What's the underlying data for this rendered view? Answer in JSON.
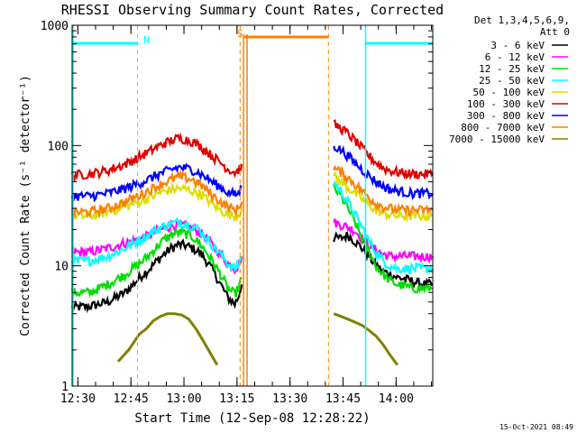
{
  "chart_data": {
    "type": "line",
    "title": "RHESSI Observing Summary Count Rates, Corrected",
    "xlabel": "Start Time (12-Sep-08 12:28:22)",
    "ylabel": "Corrected Count Rate (s⁻¹ detector⁻¹)",
    "yscale": "log",
    "ylim": [
      1,
      1000
    ],
    "xlim_minutes_after_start": [
      0,
      102
    ],
    "xticks": [
      "12:30",
      "12:45",
      "13:00",
      "13:15",
      "13:30",
      "13:45",
      "14:00"
    ],
    "yticks": [
      "1",
      "10",
      "100",
      "1000"
    ],
    "timestamp": "15-Oct-2021 08:49",
    "legend": {
      "header": [
        "Det 1,3,4,5,6,9,",
        "Att 0"
      ],
      "placement": "right",
      "items": [
        {
          "label": "3 - 6 keV",
          "color": "#000000"
        },
        {
          "label": "6 - 12 keV",
          "color": "#ff00ff"
        },
        {
          "label": "12 - 25 keV",
          "color": "#00dd00"
        },
        {
          "label": "25 - 50 keV",
          "color": "#00ffff"
        },
        {
          "label": "50 - 100 keV",
          "color": "#dddd00"
        },
        {
          "label": "100 - 300 keV",
          "color": "#e00000"
        },
        {
          "label": "300 - 800 keV",
          "color": "#0000ff"
        },
        {
          "label": "800 - 7000 keV",
          "color": "#ff8000"
        },
        {
          "label": "7000 - 15000 keV",
          "color": "#808000"
        }
      ]
    },
    "flags": [
      {
        "label": "N",
        "color": "#00ffff",
        "segments": [
          [
            0,
            18.5
          ],
          [
            83,
            102
          ]
        ],
        "markers_min": [
          18.5,
          83,
          102
        ]
      },
      {
        "label": "S",
        "color": "#ff8000",
        "segments": [
          [
            48.5,
            72.5
          ]
        ],
        "markers_min": [
          47.5,
          72.5
        ]
      }
    ],
    "x_minutes": [
      0,
      5,
      10,
      15,
      20,
      22,
      24,
      26,
      28,
      30,
      32,
      34,
      36,
      38,
      40,
      42,
      44,
      46,
      47,
      48,
      74,
      76,
      78,
      80,
      82,
      84,
      86,
      88,
      90,
      92,
      94,
      96,
      98,
      100,
      102
    ],
    "series": [
      {
        "name": "3 - 6 keV",
        "values": [
          4.5,
          4.6,
          5,
          6,
          8.5,
          9.5,
          11,
          12.5,
          14,
          15,
          14.8,
          14,
          13,
          11,
          9,
          7,
          5.5,
          4.8,
          5.5,
          7,
          17,
          17,
          18,
          16,
          14,
          12,
          10,
          9,
          8.5,
          8,
          7.8,
          7.5,
          7.2,
          7,
          7
        ]
      },
      {
        "name": "6 - 12 keV",
        "values": [
          13,
          13,
          14,
          15.5,
          17,
          18,
          19.5,
          20.5,
          21.5,
          22,
          21.5,
          20.5,
          19,
          17,
          14.5,
          12.5,
          10.5,
          9.5,
          10,
          12,
          23,
          22,
          21,
          19.5,
          17,
          15,
          13.5,
          12.5,
          12,
          12,
          12,
          12,
          12,
          12,
          12
        ]
      },
      {
        "name": "12 - 25 keV",
        "values": [
          6,
          6,
          7,
          8.5,
          11,
          12.5,
          14.5,
          16.5,
          18,
          19,
          18.5,
          17.5,
          15.5,
          13,
          10.5,
          8.5,
          6.5,
          5.8,
          6.5,
          8,
          45,
          38,
          30,
          23,
          17,
          13,
          10,
          8.5,
          7.5,
          7,
          6.8,
          6.5,
          6.5,
          6.5,
          6.5
        ]
      },
      {
        "name": "25 - 50 keV",
        "values": [
          11,
          11,
          12,
          14,
          17,
          18.5,
          20,
          21.5,
          22.5,
          23,
          22.5,
          21.5,
          20,
          17,
          14.5,
          12.5,
          10.5,
          9.5,
          10,
          12,
          50,
          42,
          34,
          27,
          21,
          16,
          13,
          11,
          10,
          9.5,
          9.5,
          9.5,
          9.5,
          9.5,
          9.5
        ]
      },
      {
        "name": "50 - 100 keV",
        "values": [
          26,
          26,
          28,
          31,
          35,
          37,
          39.5,
          41.5,
          43,
          44,
          43.5,
          42,
          40,
          36,
          32,
          29,
          27,
          26,
          27,
          30,
          55,
          50,
          45,
          40,
          36,
          32,
          29,
          27.5,
          26.5,
          26,
          26,
          26,
          26,
          26,
          26
        ]
      },
      {
        "name": "100 - 300 keV",
        "values": [
          57,
          58,
          62,
          70,
          83,
          90,
          97,
          104,
          110,
          115,
          113,
          108,
          100,
          90,
          80,
          72,
          64,
          60,
          62,
          70,
          150,
          140,
          125,
          110,
          95,
          82,
          72,
          65,
          62,
          60,
          59,
          58,
          58,
          58,
          58
        ]
      },
      {
        "name": "300 - 800 keV",
        "values": [
          38,
          38,
          40,
          44,
          50,
          53,
          57,
          60,
          63,
          66,
          65,
          63,
          59,
          54,
          49,
          45,
          41,
          39,
          40,
          45,
          100,
          92,
          82,
          72,
          63,
          56,
          50,
          46,
          43,
          42,
          41,
          40,
          40,
          40,
          40
        ]
      },
      {
        "name": "800 - 7000 keV",
        "values": [
          28,
          28,
          30,
          34,
          40,
          43,
          46,
          49,
          52,
          55,
          54,
          52,
          48,
          43,
          38,
          34,
          31,
          29,
          30,
          34,
          65,
          60,
          54,
          48,
          42,
          37,
          33,
          31,
          30,
          29,
          29,
          29,
          29,
          29,
          29
        ]
      },
      {
        "name": "7000 - 15000 keV",
        "segments": [
          {
            "x": [
              13,
              16,
              19,
              21,
              23,
              25,
              27,
              29,
              31,
              33,
              35,
              37,
              39,
              41
            ],
            "values": [
              1.6,
              2.0,
              2.7,
              3.0,
              3.5,
              3.8,
              4.0,
              4.0,
              3.9,
              3.6,
              3.0,
              2.4,
              1.9,
              1.5
            ]
          },
          {
            "x": [
              74,
              76,
              78,
              80,
              82,
              84,
              86,
              88,
              90,
              92
            ],
            "values": [
              4.0,
              3.8,
              3.6,
              3.4,
              3.2,
              2.9,
              2.6,
              2.2,
              1.8,
              1.5
            ]
          }
        ]
      }
    ]
  }
}
